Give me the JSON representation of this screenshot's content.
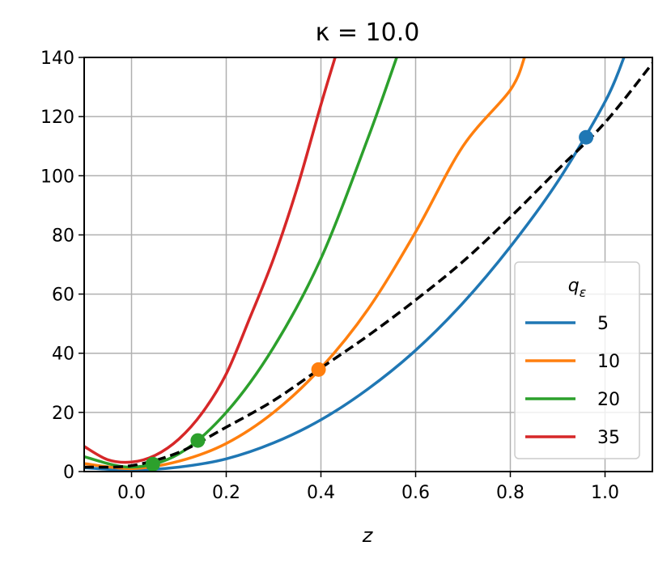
{
  "chart_data": {
    "type": "line",
    "title": "κ = 10.0",
    "xlabel": "z",
    "ylabel": "",
    "xlim": [
      -0.1,
      1.1
    ],
    "ylim": [
      0,
      140
    ],
    "xticks": [
      "0.0",
      "0.2",
      "0.4",
      "0.6",
      "0.8",
      "1.0"
    ],
    "yticks": [
      "0",
      "20",
      "40",
      "60",
      "80",
      "100",
      "120",
      "140"
    ],
    "grid": true,
    "legend": {
      "title": "q_ε",
      "placement": "lower-right",
      "entries": [
        "5",
        "10",
        "20",
        "35"
      ]
    },
    "series": [
      {
        "name": "5",
        "color": "#1f77b4",
        "x": [
          -0.1,
          0.0,
          0.1,
          0.2,
          0.3,
          0.4,
          0.5,
          0.6,
          0.7,
          0.8,
          0.9,
          1.0,
          1.04
        ],
        "y": [
          1.3,
          0.5,
          1.5,
          4.3,
          9.7,
          17.5,
          28.0,
          41.0,
          57.0,
          76.0,
          98.0,
          125.0,
          140.0
        ]
      },
      {
        "name": "10",
        "color": "#ff7f0e",
        "x": [
          -0.1,
          0.0,
          0.1,
          0.2,
          0.3,
          0.4,
          0.5,
          0.6,
          0.7,
          0.8,
          0.83
        ],
        "y": [
          2.7,
          1.0,
          3.5,
          9.5,
          20.0,
          35.0,
          55.0,
          81.0,
          110.0,
          129.0,
          140.0
        ]
      },
      {
        "name": "20",
        "color": "#2ca02c",
        "x": [
          -0.1,
          0.0,
          0.1,
          0.2,
          0.3,
          0.4,
          0.5,
          0.56
        ],
        "y": [
          5.0,
          1.5,
          6.0,
          20.0,
          42.0,
          72.0,
          113.0,
          140.0
        ]
      },
      {
        "name": "35",
        "color": "#d62728",
        "x": [
          -0.1,
          -0.05,
          0.0,
          0.05,
          0.1,
          0.15,
          0.2,
          0.25,
          0.3,
          0.35,
          0.4,
          0.43
        ],
        "y": [
          8.5,
          4.0,
          3.2,
          5.5,
          11.0,
          20.0,
          33.0,
          52.0,
          72.0,
          96.0,
          124.0,
          140.0
        ]
      },
      {
        "name": "",
        "color": "#000000",
        "style": "dashed",
        "x": [
          -0.1,
          0.0,
          0.1,
          0.2,
          0.3,
          0.4,
          0.5,
          0.6,
          0.7,
          0.8,
          0.9,
          1.0,
          1.1
        ],
        "y": [
          1.5,
          2.0,
          6.5,
          15.0,
          24.0,
          35.0,
          46.0,
          58.0,
          71.0,
          86.0,
          102.0,
          118.0,
          138.0
        ]
      }
    ],
    "markers": [
      {
        "x": 0.96,
        "y": 113,
        "color": "#1f77b4"
      },
      {
        "x": 0.395,
        "y": 34.5,
        "color": "#ff7f0e"
      },
      {
        "x": 0.14,
        "y": 10.5,
        "color": "#2ca02c"
      },
      {
        "x": 0.045,
        "y": 2.5,
        "color": "#2ca02c"
      }
    ]
  }
}
